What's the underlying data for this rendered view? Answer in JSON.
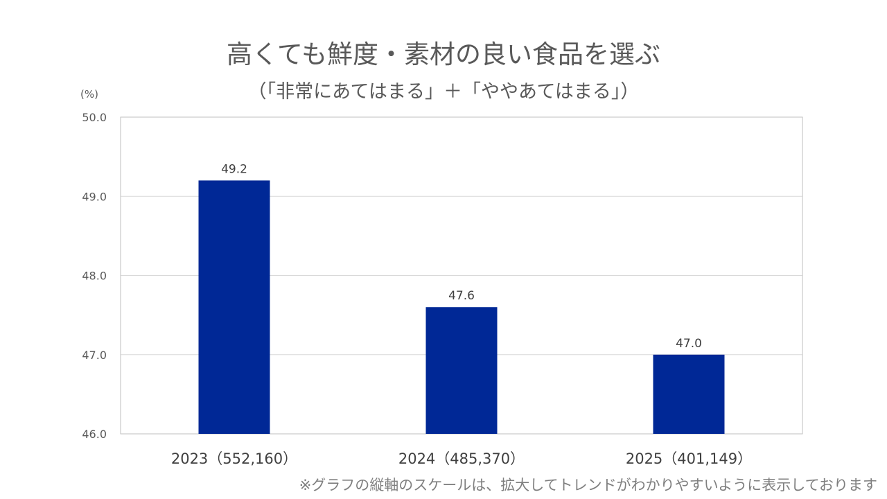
{
  "header": {
    "title": "高くても鮮度・素材の良い食品を選ぶ",
    "subtitle": "（「非常にあてはまる」＋「ややあてはまる」）"
  },
  "axis": {
    "unit_label": "(%)"
  },
  "footnote": "※グラフの縦軸のスケールは、拡大してトレンドがわかりやすいように表示しております",
  "colors": {
    "bar": "#002896",
    "grid": "#d9d9d9",
    "border": "#bfbfbf"
  },
  "chart_data": {
    "type": "bar",
    "title": "高くても鮮度・素材の良い食品を選ぶ",
    "subtitle": "（「非常にあてはまる」＋「ややあてはまる」）",
    "categories": [
      "2023（552,160）",
      "2024（485,370）",
      "2025（401,149）"
    ],
    "values": [
      49.2,
      47.6,
      47.0
    ],
    "value_labels": [
      "49.2",
      "47.6",
      "47.0"
    ],
    "ylabel": "(%)",
    "xlabel": "",
    "ylim": [
      46.0,
      50.0
    ],
    "yticks": [
      46.0,
      47.0,
      48.0,
      49.0,
      50.0
    ],
    "ytick_labels": [
      "46.0",
      "47.0",
      "48.0",
      "49.0",
      "50.0"
    ],
    "grid": true,
    "legend": "none"
  }
}
